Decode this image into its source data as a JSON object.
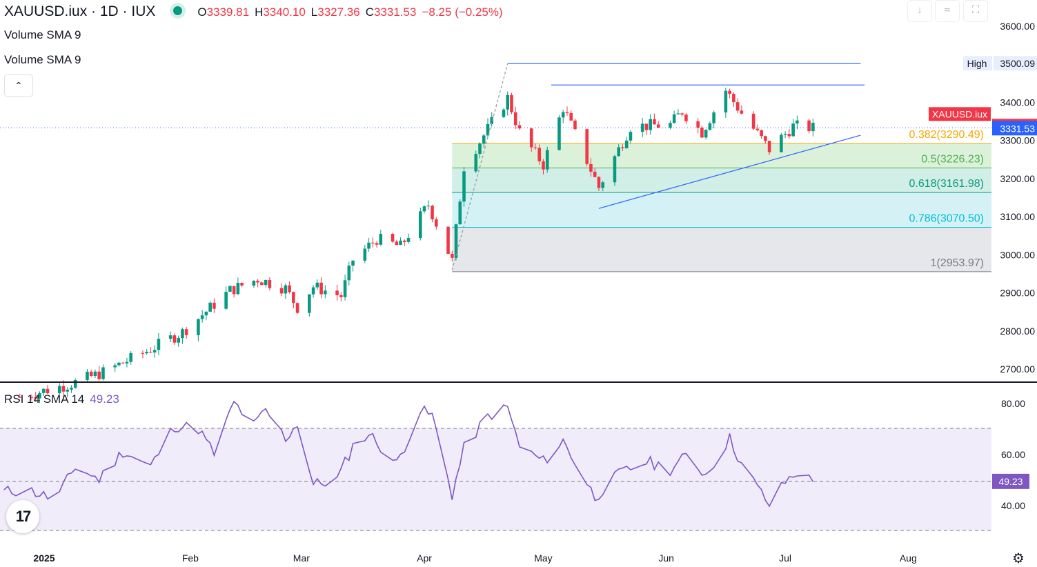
{
  "header": {
    "symbol_line": "XAUUSD.iux · 1D · IUX",
    "ohlc": [
      {
        "key": "O",
        "value": "3339.81"
      },
      {
        "key": "H",
        "value": "3340.10"
      },
      {
        "key": "L",
        "value": "3327.36"
      },
      {
        "key": "C",
        "value": "3331.53"
      }
    ],
    "change": "−8.25 (−0.25%)"
  },
  "indicators": {
    "volume1": "Volume SMA 9",
    "volume2": "Volume SMA 9",
    "collapse_icon": "chevron-up-icon"
  },
  "toolbar": {
    "icons": [
      "arrow-down-icon",
      "collapse-arrows-icon",
      "maximize-icon"
    ],
    "glyphs": [
      "↓",
      "≈",
      "⛶"
    ]
  },
  "rsi": {
    "label": "RSI 14 SMA 14",
    "value": "49.23"
  },
  "logo": {
    "text": "17"
  },
  "settings_icon": "gear-icon",
  "colors": {
    "up": "#089981",
    "down": "#f23645",
    "rsi": "#7e57c2",
    "fib382": "#f7a600",
    "fib5": "#4caf50",
    "fib618": "#089981",
    "fib786": "#00bcd4",
    "fib1": "#787b86",
    "line": "#2962ff"
  },
  "chart_data": [
    {
      "type": "candlestick",
      "title": "XAUUSD.iux · 1D · IUX",
      "ylim": [
        2670,
        3630
      ],
      "y_ticks": [
        "3600.00",
        "3500.00",
        "3400.00",
        "3300.00",
        "3200.00",
        "3100.00",
        "3000.00",
        "2900.00",
        "2800.00",
        "2700.00"
      ],
      "y_tick_values": [
        3600,
        3500,
        3400,
        3300,
        3200,
        3100,
        3000,
        2900,
        2800,
        2700
      ],
      "x_labels": [
        "2025",
        "Feb",
        "Mar",
        "Apr",
        "May",
        "Jun",
        "Jul",
        "Aug"
      ],
      "x_label_dates": [
        "2025-01-01",
        "2025-02-01",
        "2025-03-01",
        "2025-04-01",
        "2025-05-01",
        "2025-06-01",
        "2025-07-01",
        "2025-08-01"
      ],
      "date_range": [
        "2024-12-15",
        "2025-08-22"
      ],
      "price_labels": [
        {
          "text": "High",
          "value": "3500.09",
          "y": 3500.09
        },
        {
          "text": "",
          "value": "3331.67",
          "y": 3331.67
        },
        {
          "text": "XAUUSD.iux",
          "value": "3331.53",
          "y": 3331.53
        }
      ],
      "fibonacci": [
        {
          "label": "0.382(3290.49)",
          "level": 3290.49
        },
        {
          "label": "0.5(3226.23)",
          "level": 3226.23
        },
        {
          "label": "0.618(3161.98)",
          "level": 3161.98
        },
        {
          "label": "0.786(3070.50)",
          "level": 3070.5
        },
        {
          "label": "1(2953.97)",
          "level": 2953.97
        }
      ],
      "fib_start": "2025-04-08",
      "drawings": [
        {
          "name": "resistance-line-high",
          "from": [
            "2025-04-22",
            3500.09
          ],
          "to": [
            "2025-07-20",
            3500.09
          ]
        },
        {
          "name": "resistance-line-secondary",
          "from": [
            "2025-05-03",
            3444
          ],
          "to": [
            "2025-07-21",
            3444
          ]
        },
        {
          "name": "ascending-trendline",
          "from": [
            "2025-05-15",
            3120
          ],
          "to": [
            "2025-07-20",
            3312
          ]
        },
        {
          "name": "fib-guide-dashed",
          "from": [
            "2025-04-08",
            2958
          ],
          "to": [
            "2025-04-22",
            3500
          ]
        }
      ],
      "anchor_points": [
        [
          "2024-12-20",
          2625
        ],
        [
          "2025-01-02",
          2660
        ],
        [
          "2025-01-10",
          2690
        ],
        [
          "2025-01-20",
          2740
        ],
        [
          "2025-01-30",
          2795
        ],
        [
          "2025-02-11",
          2905
        ],
        [
          "2025-02-18",
          2935
        ],
        [
          "2025-02-25",
          2910
        ],
        [
          "2025-02-28",
          2860
        ],
        [
          "2025-03-04",
          2915
        ],
        [
          "2025-03-11",
          2890
        ],
        [
          "2025-03-14",
          2985
        ],
        [
          "2025-03-20",
          3040
        ],
        [
          "2025-03-26",
          3020
        ],
        [
          "2025-04-02",
          3130
        ],
        [
          "2025-04-08",
          2982
        ],
        [
          "2025-04-11",
          3230
        ],
        [
          "2025-04-22",
          3410
        ],
        [
          "2025-04-25",
          3320
        ],
        [
          "2025-05-01",
          3235
        ],
        [
          "2025-05-06",
          3385
        ],
        [
          "2025-05-15",
          3175
        ],
        [
          "2025-05-23",
          3335
        ],
        [
          "2025-06-02",
          3340
        ],
        [
          "2025-06-05",
          3375
        ],
        [
          "2025-06-10",
          3320
        ],
        [
          "2025-06-16",
          3430
        ],
        [
          "2025-06-20",
          3370
        ],
        [
          "2025-06-27",
          3275
        ],
        [
          "2025-07-03",
          3336
        ],
        [
          "2025-07-08",
          3331
        ]
      ]
    },
    {
      "type": "line",
      "title": "RSI 14 SMA 14",
      "ylim": [
        22,
        88
      ],
      "y_ticks": [
        "80.00",
        "60.00",
        "40.00"
      ],
      "y_tick_values": [
        80,
        60,
        40
      ],
      "bands": [
        30,
        70
      ],
      "sma_level": 49.23,
      "current_value": "49.23",
      "anchor_points": [
        [
          "2024-12-15",
          45
        ],
        [
          "2024-12-22",
          46
        ],
        [
          "2024-12-29",
          42
        ],
        [
          "2025-01-03",
          55
        ],
        [
          "2025-01-09",
          50
        ],
        [
          "2025-01-15",
          61
        ],
        [
          "2025-01-22",
          55
        ],
        [
          "2025-01-28",
          71
        ],
        [
          "2025-02-03",
          70
        ],
        [
          "2025-02-07",
          60
        ],
        [
          "2025-02-12",
          80
        ],
        [
          "2025-02-17",
          71
        ],
        [
          "2025-02-20",
          77
        ],
        [
          "2025-02-25",
          66
        ],
        [
          "2025-02-28",
          72
        ],
        [
          "2025-03-04",
          48
        ],
        [
          "2025-03-10",
          50
        ],
        [
          "2025-03-14",
          63
        ],
        [
          "2025-03-18",
          68
        ],
        [
          "2025-03-25",
          56
        ],
        [
          "2025-03-31",
          77
        ],
        [
          "2025-04-03",
          75
        ],
        [
          "2025-04-08",
          44
        ],
        [
          "2025-04-11",
          62
        ],
        [
          "2025-04-17",
          75
        ],
        [
          "2025-04-22",
          78
        ],
        [
          "2025-04-25",
          63
        ],
        [
          "2025-05-01",
          57
        ],
        [
          "2025-05-06",
          65
        ],
        [
          "2025-05-14",
          43
        ],
        [
          "2025-05-20",
          52
        ],
        [
          "2025-05-27",
          57
        ],
        [
          "2025-06-02",
          54
        ],
        [
          "2025-06-06",
          59
        ],
        [
          "2025-06-11",
          52
        ],
        [
          "2025-06-17",
          66
        ],
        [
          "2025-06-20",
          56
        ],
        [
          "2025-06-27",
          40
        ],
        [
          "2025-07-01",
          49
        ],
        [
          "2025-07-04",
          53
        ],
        [
          "2025-07-08",
          49
        ]
      ]
    }
  ]
}
